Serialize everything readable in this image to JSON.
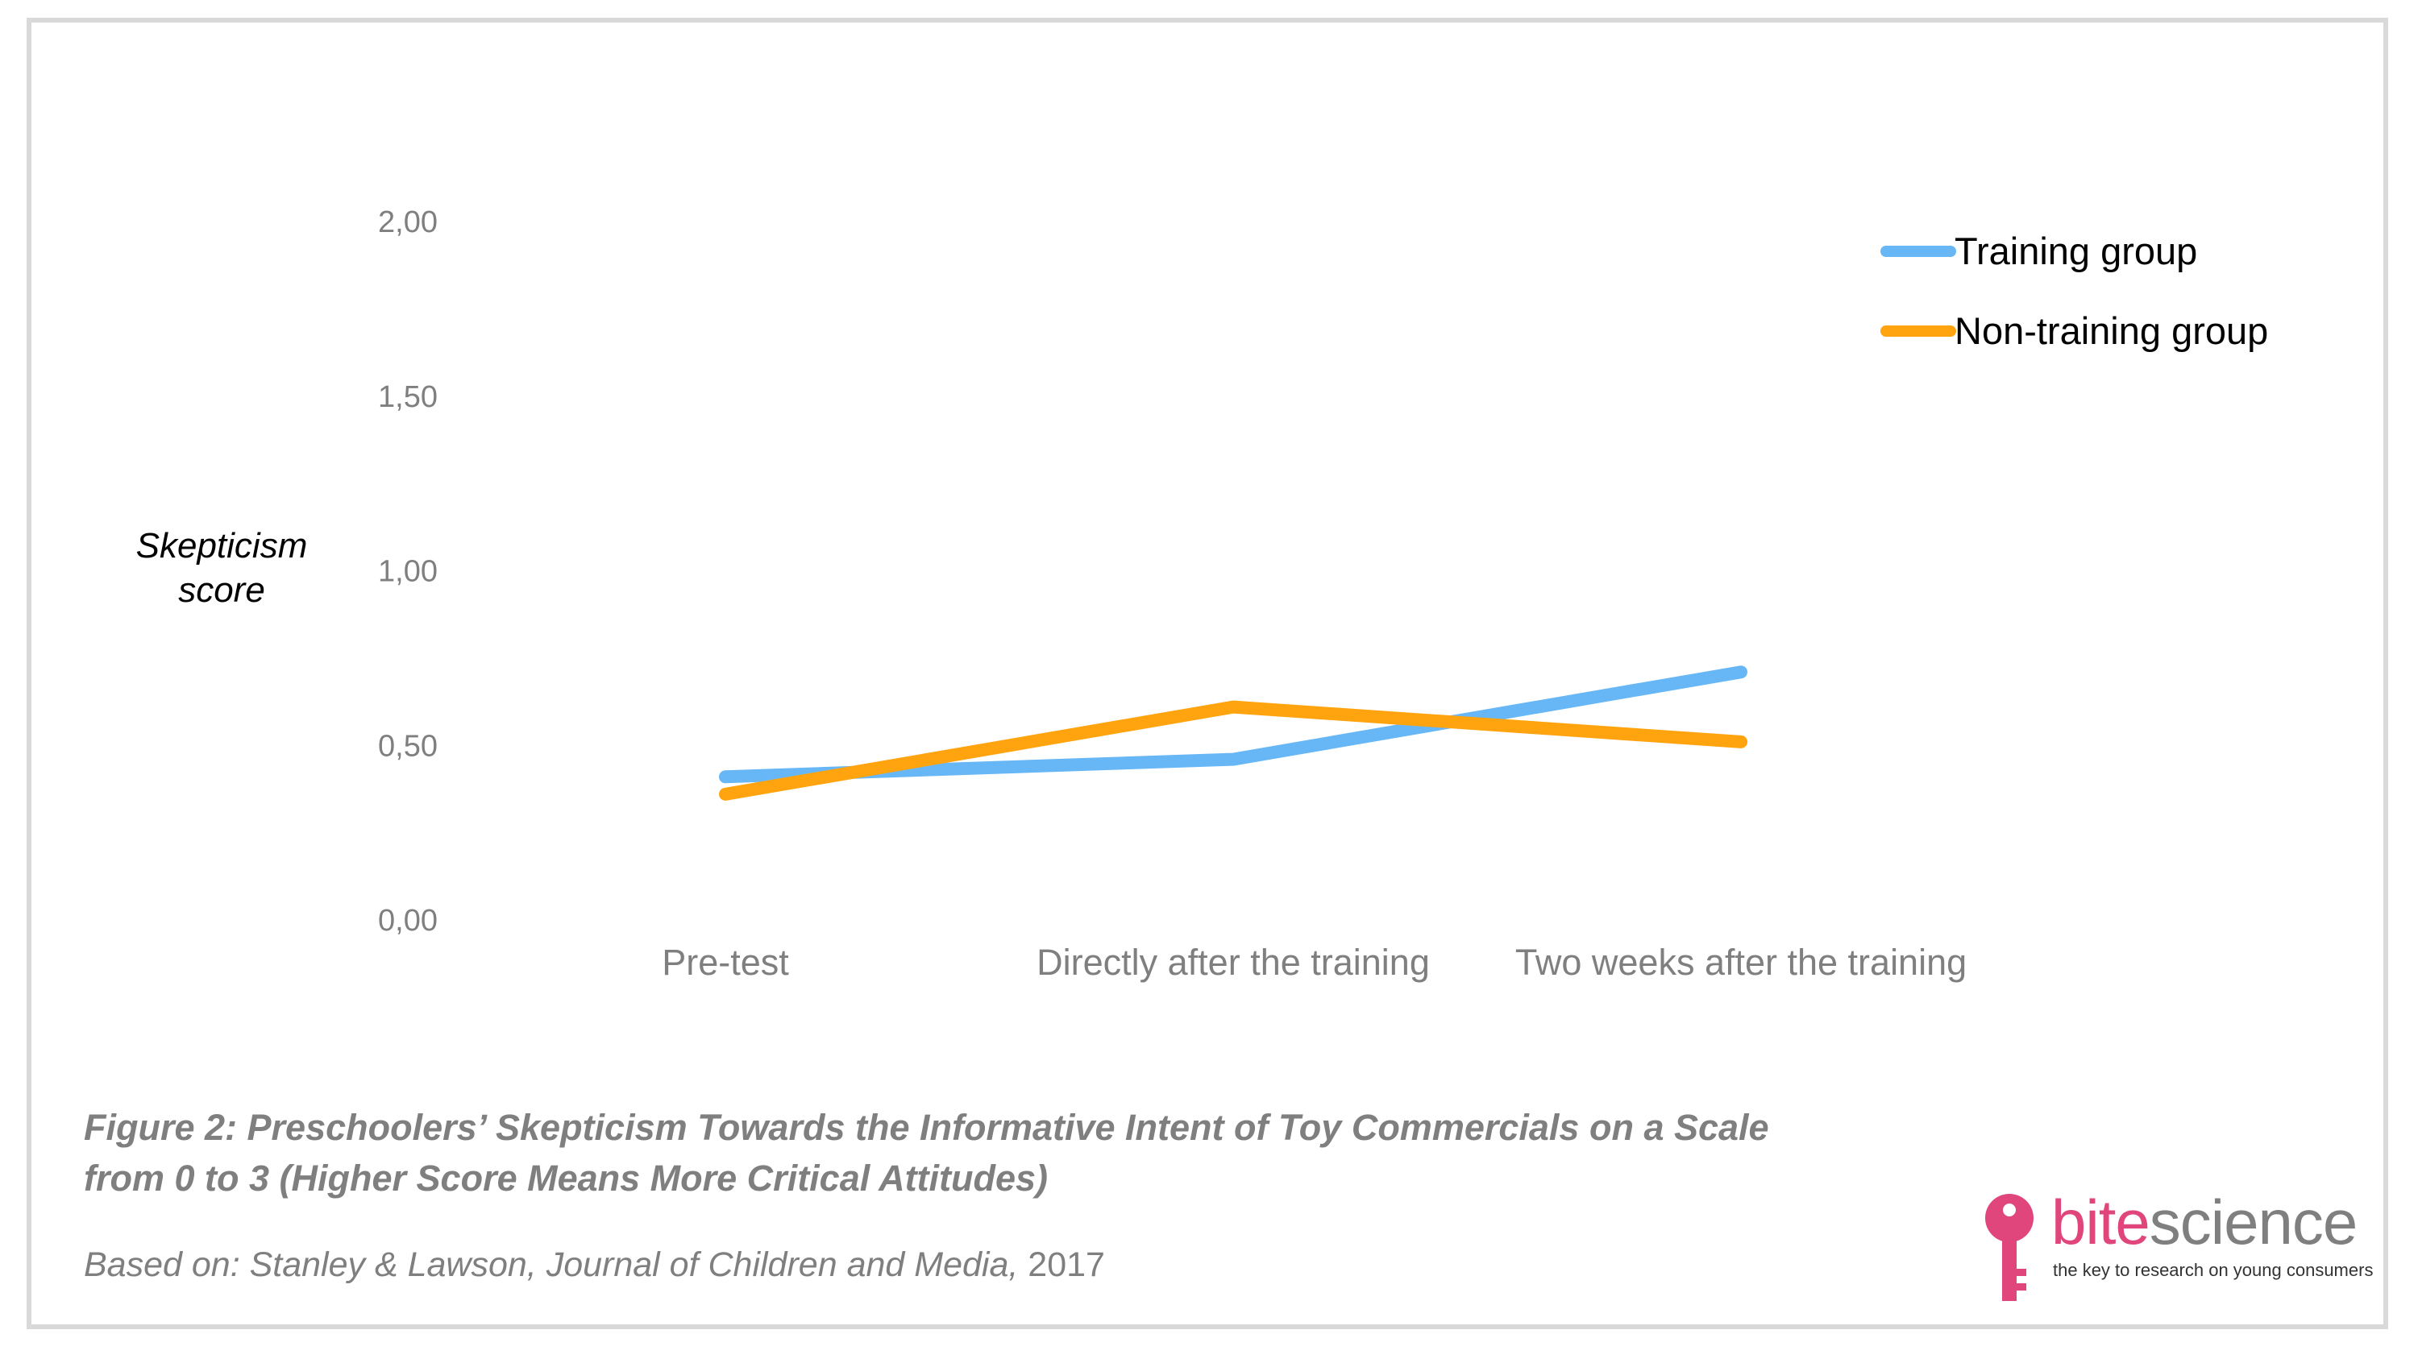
{
  "chart_data": {
    "type": "line",
    "categories": [
      "Pre-test",
      "Directly after the training",
      "Two weeks after the training"
    ],
    "series": [
      {
        "name": "Training group",
        "values": [
          0.41,
          0.46,
          0.71
        ],
        "color": "#67b7f7"
      },
      {
        "name": "Non-training group",
        "values": [
          0.36,
          0.61,
          0.51
        ],
        "color": "#ffa30f"
      }
    ],
    "y_ticks": [
      "2,00",
      "1,50",
      "1,00",
      "0,50",
      "0,00"
    ],
    "ylabel": "Skepticism score",
    "ylim": [
      0,
      2
    ],
    "grid": false,
    "legend": "top-right"
  },
  "caption": {
    "title": "Figure 2: Preschoolers’ Skepticism Towards the Informative Intent of Toy Commercials on a Scale from 0 to 3 (Higher Score Means More Critical Attitudes)",
    "source_italic": "Based on: Stanley & Lawson, Journal of Children and Media,",
    "source_year": " 2017"
  },
  "logo": {
    "bite": "bite",
    "science": "science",
    "tagline": "the key to research on young consumers",
    "colors": {
      "bite": "#e0457b",
      "science": "#7f7f7f",
      "key": "#e0457b"
    }
  }
}
